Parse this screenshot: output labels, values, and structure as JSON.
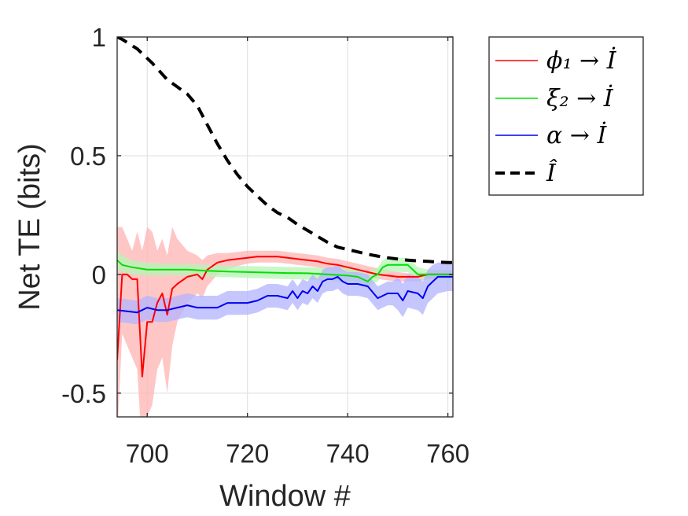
{
  "chart_data": {
    "type": "line",
    "title": "",
    "xlabel": "Window #",
    "ylabel": "Net TE (bits)",
    "xlim": [
      694,
      761
    ],
    "ylim": [
      -0.6,
      1.0
    ],
    "xticks": [
      700,
      720,
      740,
      760
    ],
    "xtick_labels": [
      "700",
      "720",
      "740",
      "760"
    ],
    "yticks": [
      -0.5,
      0,
      0.5,
      1
    ],
    "ytick_labels": [
      "-0.5",
      "0",
      "0.5",
      "1"
    ],
    "grid": true,
    "legend_position": "outside-right-top",
    "series": [
      {
        "name": "ϕ₁ → İ",
        "color": "#ff0000",
        "band_color": "#ffb3b3",
        "x": [
          694,
          695,
          696,
          697,
          698,
          699,
          700,
          701,
          702,
          703,
          704,
          705,
          706,
          708,
          710,
          711,
          712,
          714,
          716,
          718,
          720,
          722,
          724,
          726,
          728,
          730,
          732,
          734,
          736,
          738,
          740,
          742,
          744,
          746,
          748,
          750,
          752,
          754,
          756,
          758,
          760,
          761
        ],
        "y": [
          -0.36,
          0.0,
          0.0,
          -0.02,
          -0.02,
          -0.43,
          -0.2,
          -0.2,
          -0.12,
          -0.08,
          -0.17,
          -0.06,
          -0.04,
          -0.01,
          0.0,
          -0.02,
          0.02,
          0.05,
          0.06,
          0.065,
          0.07,
          0.075,
          0.075,
          0.075,
          0.07,
          0.065,
          0.06,
          0.055,
          0.045,
          0.04,
          0.03,
          0.02,
          0.01,
          0.0,
          -0.005,
          -0.01,
          -0.01,
          -0.01,
          0.0,
          0.0,
          0.0,
          0.0
        ],
        "band_lo": [
          -0.7,
          -0.25,
          -0.3,
          -0.35,
          -0.4,
          -0.75,
          -0.6,
          -0.55,
          -0.4,
          -0.35,
          -0.5,
          -0.3,
          -0.2,
          -0.12,
          -0.08,
          -0.1,
          -0.05,
          0.0,
          0.02,
          0.035,
          0.045,
          0.05,
          0.05,
          0.05,
          0.045,
          0.04,
          0.035,
          0.03,
          0.02,
          0.015,
          0.005,
          0.0,
          -0.01,
          -0.02,
          -0.025,
          -0.03,
          -0.03,
          -0.03,
          -0.02,
          -0.015,
          -0.015,
          -0.015
        ],
        "band_hi": [
          0.2,
          0.2,
          0.15,
          0.1,
          0.18,
          0.1,
          0.2,
          0.18,
          0.1,
          0.15,
          0.08,
          0.2,
          0.15,
          0.1,
          0.08,
          0.06,
          0.08,
          0.09,
          0.09,
          0.095,
          0.1,
          0.1,
          0.1,
          0.1,
          0.095,
          0.09,
          0.085,
          0.08,
          0.07,
          0.065,
          0.055,
          0.045,
          0.035,
          0.025,
          0.02,
          0.01,
          0.005,
          0.005,
          0.01,
          0.015,
          0.015,
          0.015
        ]
      },
      {
        "name": "ξ₂ → İ",
        "color": "#00e000",
        "band_color": "#b6f5b6",
        "x": [
          694,
          695,
          697,
          700,
          704,
          708,
          712,
          716,
          720,
          724,
          728,
          732,
          736,
          740,
          742,
          744,
          745,
          746,
          747,
          748,
          750,
          752,
          754,
          756,
          758,
          760,
          761
        ],
        "y": [
          0.06,
          0.04,
          0.03,
          0.02,
          0.02,
          0.02,
          0.015,
          0.012,
          0.01,
          0.008,
          0.006,
          0.005,
          0.0,
          -0.005,
          -0.01,
          -0.03,
          -0.01,
          0.0,
          0.03,
          0.04,
          0.04,
          0.04,
          0.0,
          0.0,
          0.0,
          0.0,
          0.0
        ],
        "band_lo": [
          0.02,
          0.01,
          0.0,
          -0.005,
          -0.005,
          -0.005,
          -0.01,
          -0.012,
          -0.015,
          -0.017,
          -0.02,
          -0.022,
          -0.028,
          -0.035,
          -0.04,
          -0.06,
          -0.04,
          -0.03,
          0.0,
          0.01,
          0.01,
          0.01,
          -0.02,
          -0.02,
          -0.02,
          -0.02,
          -0.02
        ],
        "band_hi": [
          0.1,
          0.08,
          0.06,
          0.05,
          0.045,
          0.045,
          0.04,
          0.037,
          0.035,
          0.033,
          0.032,
          0.03,
          0.028,
          0.025,
          0.02,
          0.0,
          0.02,
          0.03,
          0.06,
          0.07,
          0.07,
          0.07,
          0.03,
          0.02,
          0.02,
          0.02,
          0.02
        ]
      },
      {
        "name": "α → İ",
        "color": "#0000ee",
        "band_color": "#b3b3ff",
        "x": [
          694,
          696,
          698,
          700,
          702,
          704,
          706,
          708,
          710,
          712,
          714,
          716,
          718,
          720,
          722,
          724,
          726,
          728,
          729,
          730,
          731,
          732,
          733,
          734,
          735,
          736,
          737,
          738,
          739,
          740,
          742,
          744,
          746,
          748,
          749,
          750,
          751,
          752,
          754,
          755,
          756,
          757,
          758,
          760,
          761
        ],
        "y": [
          -0.15,
          -0.155,
          -0.16,
          -0.14,
          -0.15,
          -0.15,
          -0.14,
          -0.13,
          -0.14,
          -0.14,
          -0.14,
          -0.12,
          -0.12,
          -0.12,
          -0.11,
          -0.09,
          -0.09,
          -0.1,
          -0.07,
          -0.1,
          -0.07,
          -0.08,
          -0.05,
          -0.07,
          -0.03,
          -0.02,
          -0.02,
          -0.01,
          -0.03,
          -0.04,
          -0.04,
          -0.05,
          -0.1,
          -0.08,
          -0.08,
          -0.08,
          -0.11,
          -0.07,
          -0.08,
          -0.1,
          -0.05,
          -0.03,
          -0.01,
          -0.01,
          -0.01
        ],
        "band_lo": [
          -0.2,
          -0.205,
          -0.21,
          -0.19,
          -0.2,
          -0.2,
          -0.19,
          -0.18,
          -0.19,
          -0.19,
          -0.19,
          -0.17,
          -0.17,
          -0.17,
          -0.16,
          -0.14,
          -0.14,
          -0.15,
          -0.12,
          -0.15,
          -0.12,
          -0.13,
          -0.1,
          -0.12,
          -0.08,
          -0.07,
          -0.07,
          -0.06,
          -0.08,
          -0.09,
          -0.09,
          -0.1,
          -0.15,
          -0.13,
          -0.13,
          -0.15,
          -0.18,
          -0.14,
          -0.15,
          -0.17,
          -0.12,
          -0.1,
          -0.08,
          -0.07,
          -0.07
        ],
        "band_hi": [
          -0.1,
          -0.105,
          -0.11,
          -0.09,
          -0.1,
          -0.1,
          -0.09,
          -0.08,
          -0.09,
          -0.09,
          -0.09,
          -0.07,
          -0.07,
          -0.07,
          -0.06,
          -0.04,
          -0.04,
          -0.05,
          -0.02,
          -0.05,
          -0.02,
          -0.03,
          0.0,
          -0.02,
          0.02,
          0.03,
          0.03,
          0.04,
          0.02,
          0.01,
          0.01,
          0.0,
          -0.05,
          -0.03,
          -0.03,
          -0.01,
          -0.04,
          0.0,
          -0.01,
          -0.03,
          0.02,
          0.04,
          0.05,
          0.05,
          0.05
        ]
      },
      {
        "name": "Î",
        "color": "#000000",
        "dashed": true,
        "x": [
          694,
          695,
          698,
          701,
          704,
          708,
          710,
          712,
          714,
          716,
          718,
          720,
          722,
          724,
          726,
          728,
          730,
          732,
          734,
          736,
          738,
          740,
          742,
          744,
          746,
          748,
          750,
          752,
          754,
          756,
          758,
          760,
          761
        ],
        "y": [
          1.0,
          0.99,
          0.95,
          0.89,
          0.82,
          0.76,
          0.71,
          0.63,
          0.55,
          0.48,
          0.42,
          0.37,
          0.33,
          0.29,
          0.26,
          0.24,
          0.21,
          0.185,
          0.16,
          0.135,
          0.115,
          0.105,
          0.095,
          0.085,
          0.077,
          0.07,
          0.065,
          0.06,
          0.057,
          0.055,
          0.052,
          0.05,
          0.05
        ]
      }
    ]
  }
}
